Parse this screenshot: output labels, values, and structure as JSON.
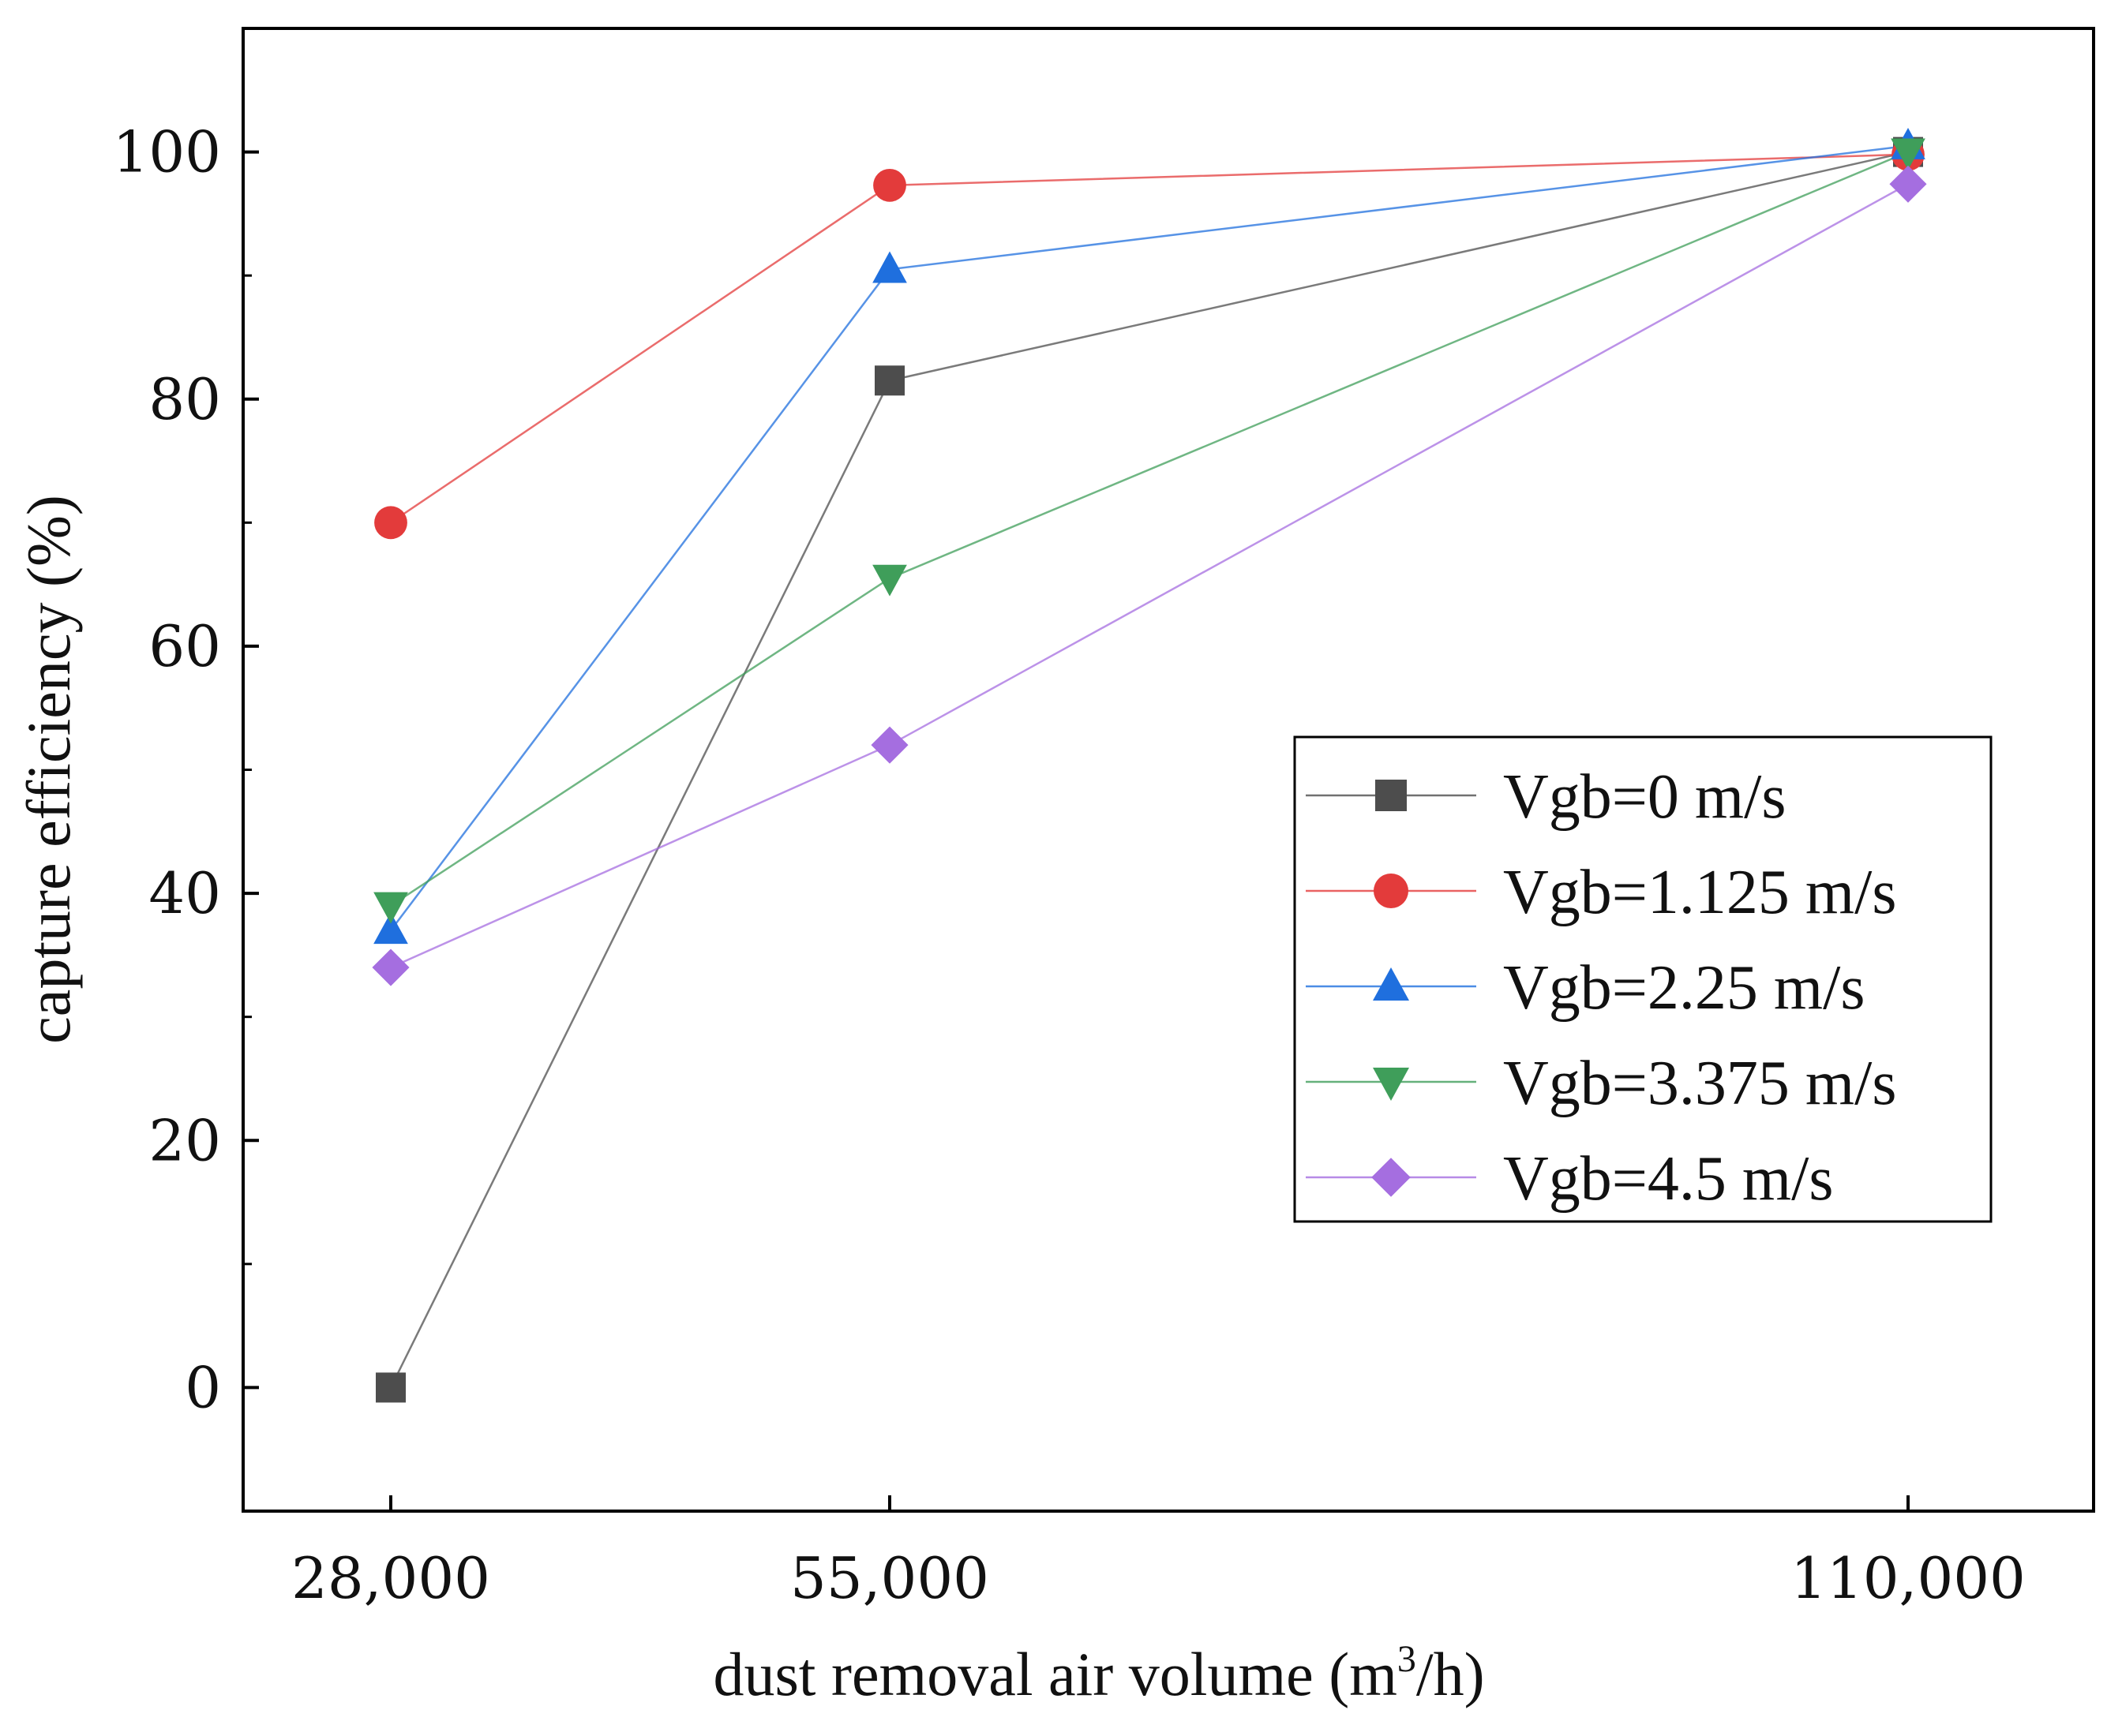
{
  "chart_data": {
    "type": "line",
    "x": [
      28000,
      55000,
      110000
    ],
    "x_tick_labels": [
      "28,000",
      "55,000",
      "110,000"
    ],
    "xlabel": {
      "prefix": "dust removal air volume (m",
      "superscript": "3",
      "suffix": "/h)"
    },
    "ylabel": "capture efficiency (%)",
    "y_ticks": [
      0,
      20,
      40,
      60,
      80,
      100
    ],
    "y_tick_labels": [
      "0",
      "20",
      "40",
      "60",
      "80",
      "100"
    ],
    "y_minor_ticks": [
      -10,
      10,
      30,
      50,
      70,
      90,
      110
    ],
    "ylim": [
      -10,
      110
    ],
    "legend_position": "center-right",
    "grid": false,
    "series": [
      {
        "name": "Vgb=0 m/s",
        "values": [
          0,
          81.5,
          100
        ],
        "color": "#4d4d4d",
        "marker": "square"
      },
      {
        "name": "Vgb=1.125 m/s",
        "values": [
          70,
          97.3,
          99.8
        ],
        "color": "#e33b3b",
        "marker": "circle"
      },
      {
        "name": "Vgb=2.25 m/s",
        "values": [
          37,
          90.5,
          100.5
        ],
        "color": "#1f6fde",
        "marker": "triangle-up"
      },
      {
        "name": "Vgb=3.375 m/s",
        "values": [
          39,
          65.5,
          100
        ],
        "color": "#3f9e5a",
        "marker": "triangle-down"
      },
      {
        "name": "Vgb=4.5 m/s",
        "values": [
          34,
          52,
          97.4
        ],
        "color": "#a56ee0",
        "marker": "diamond"
      }
    ]
  }
}
